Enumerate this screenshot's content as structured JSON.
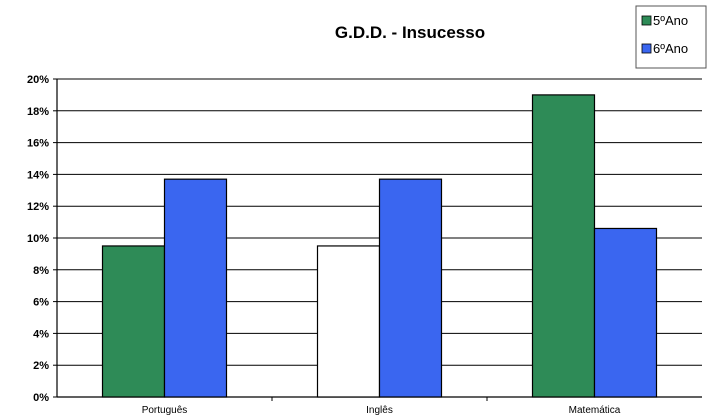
{
  "chart_data": {
    "type": "bar",
    "title": "G.D.D. - Insucesso",
    "categories": [
      "Português",
      "Inglês",
      "Matemática"
    ],
    "series": [
      {
        "name": "5ºAno",
        "values": [
          9.5,
          9.5,
          19.0
        ],
        "color": "#2e8b57",
        "point_colors": [
          "#2e8b57",
          "#ffffff",
          "#2e8b57"
        ]
      },
      {
        "name": "6ºAno",
        "values": [
          13.7,
          13.7,
          10.6
        ],
        "color": "#3a66f0"
      }
    ],
    "y_ticks": [
      "0%",
      "2%",
      "4%",
      "6%",
      "8%",
      "10%",
      "12%",
      "14%",
      "16%",
      "18%",
      "20%"
    ],
    "ylim": [
      0,
      20
    ],
    "y_unit": "%",
    "grid": true,
    "legend_position": "top-right"
  }
}
